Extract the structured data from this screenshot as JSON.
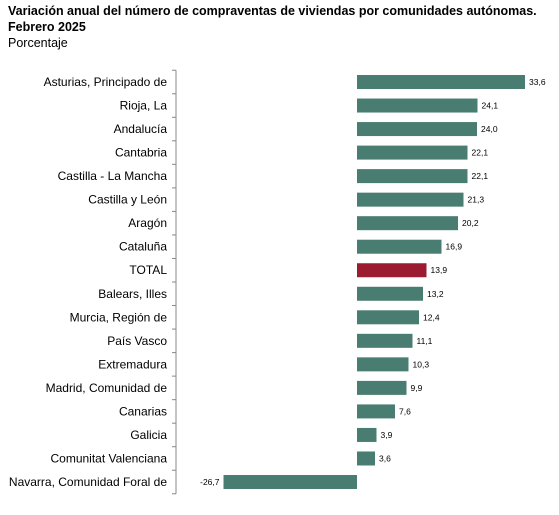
{
  "header": {
    "title_line1": "Variación anual del número de compraventas de viviendas por comunidades autónomas.",
    "title_line2": "Febrero 2025",
    "subtitle": "Porcentaje"
  },
  "colors": {
    "bar": "#4a7d72",
    "highlight": "#9b1b30",
    "axis": "#888888"
  },
  "chart_data": {
    "type": "bar",
    "orientation": "horizontal",
    "title": "Variación anual del número de compraventas de viviendas por comunidades autónomas. Febrero 2025",
    "subtitle": "Porcentaje",
    "xlabel": "",
    "ylabel": "",
    "xlim": [
      -30,
      35
    ],
    "grid": false,
    "legend": "none",
    "highlight_category": "TOTAL",
    "categories": [
      "Asturias, Principado de",
      "Rioja, La",
      "Andalucía",
      "Cantabria",
      "Castilla - La Mancha",
      "Castilla y León",
      "Aragón",
      "Cataluña",
      "TOTAL",
      "Balears, Illes",
      "Murcia, Región de",
      "País Vasco",
      "Extremadura",
      "Madrid, Comunidad de",
      "Canarias",
      "Galicia",
      "Comunitat Valenciana",
      "Navarra, Comunidad Foral de"
    ],
    "values": [
      33.6,
      24.1,
      24.0,
      22.1,
      22.1,
      21.3,
      20.2,
      16.9,
      13.9,
      13.2,
      12.4,
      11.1,
      10.3,
      9.9,
      7.6,
      3.9,
      3.6,
      -26.7
    ],
    "value_labels": [
      "33,6",
      "24,1",
      "24,0",
      "22,1",
      "22,1",
      "21,3",
      "20,2",
      "16,9",
      "13,9",
      "13,2",
      "12,4",
      "11,1",
      "10,3",
      "9,9",
      "7,6",
      "3,9",
      "3,6",
      "-26,7"
    ]
  }
}
